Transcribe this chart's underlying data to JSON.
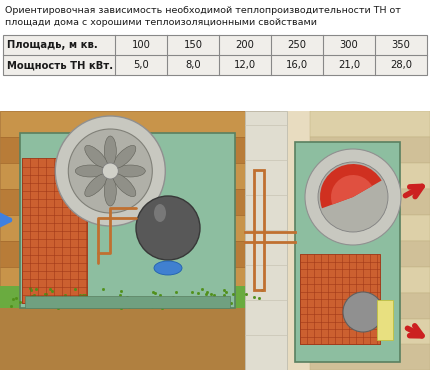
{
  "title_line1": "Ориентировочная зависимость необходимой теплопроизводительности ТН от",
  "title_line2": "площади дома с хорошими теплоизоляционными свойствами",
  "table_row1_label": "Площадь, м кв.",
  "table_row2_label": "Мощность ТН кВт.",
  "table_col_values1": [
    "100",
    "150",
    "200",
    "250",
    "300",
    "350"
  ],
  "table_col_values2": [
    "5,0",
    "8,0",
    "12,0",
    "16,0",
    "21,0",
    "28,0"
  ],
  "bg_color": "#ffffff",
  "title_fontsize": 6.8,
  "table_fontsize": 7.2,
  "title_color": "#1a1a1a",
  "table_text_color": "#1a1a1a",
  "table_border_color": "#888888",
  "table_bg": "#f0eeea",
  "illus_bg_left": "#d4b080",
  "illus_bg_right": "#e0d0b0",
  "grass_color": "#6aab40",
  "ground_color": "#b08040",
  "wall_color": "#c8a060",
  "wall_right_color": "#d4b880",
  "wall_divider_color": "#e8e4d8",
  "unit_green": "#8ec0a0",
  "coil_color": "#cc6030",
  "compressor_color": "#707070",
  "fan_color": "#c8c8c0",
  "pipe_color": "#c07030",
  "arrow_blue": "#3060d0",
  "arrow_red": "#cc2020",
  "arrow_blue2": "#4080e0"
}
